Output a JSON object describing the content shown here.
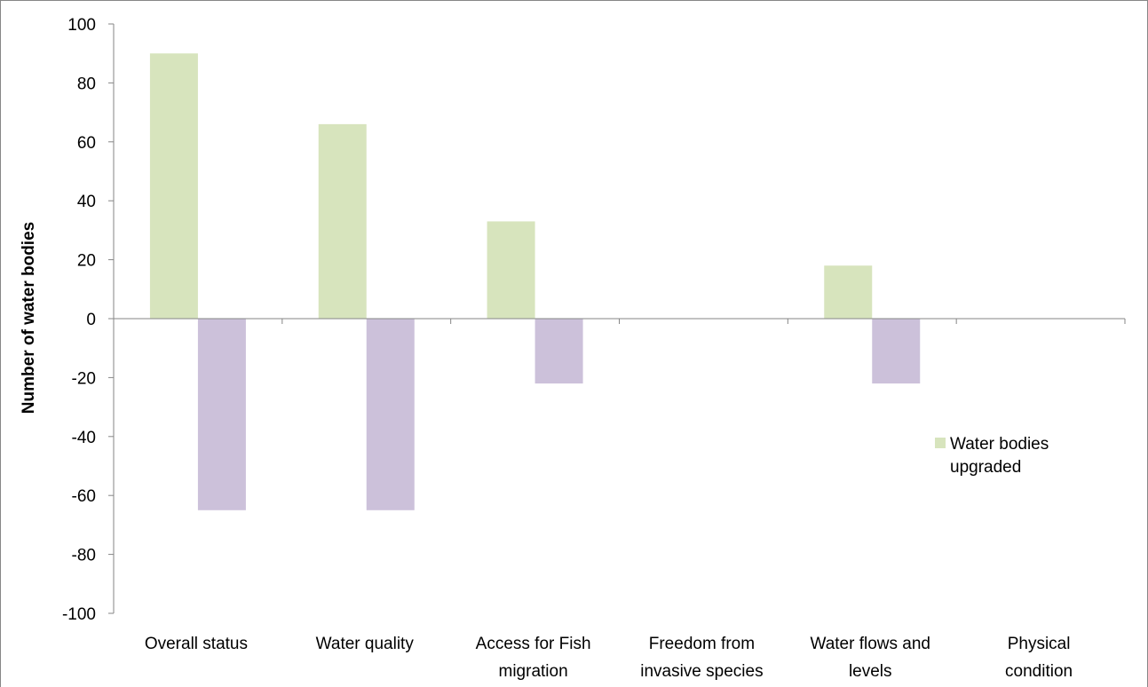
{
  "chart_data": {
    "type": "bar",
    "title": "",
    "xlabel": "",
    "ylabel": "Number of water bodies",
    "ylim": [
      -100,
      100
    ],
    "ytick_step": 20,
    "grid": false,
    "legend_position": "right",
    "categories": [
      [
        "Overall status"
      ],
      [
        "Water quality"
      ],
      [
        "Access for Fish",
        "migration"
      ],
      [
        "Freedom from",
        "invasive species"
      ],
      [
        "Water flows and",
        "levels"
      ],
      [
        "Physical",
        "condition"
      ]
    ],
    "series": [
      {
        "name": "Water bodies upgraded",
        "legend_lines": [
          "Water bodies",
          "upgraded"
        ],
        "color": "#d7e4bd",
        "values": [
          90,
          66,
          33,
          0,
          18,
          0
        ]
      },
      {
        "name": "",
        "color": "#ccc1da",
        "values": [
          -65,
          -65,
          -22,
          0,
          -22,
          0
        ]
      }
    ],
    "colors": {
      "axis": "#868686",
      "border": "#868686"
    }
  }
}
